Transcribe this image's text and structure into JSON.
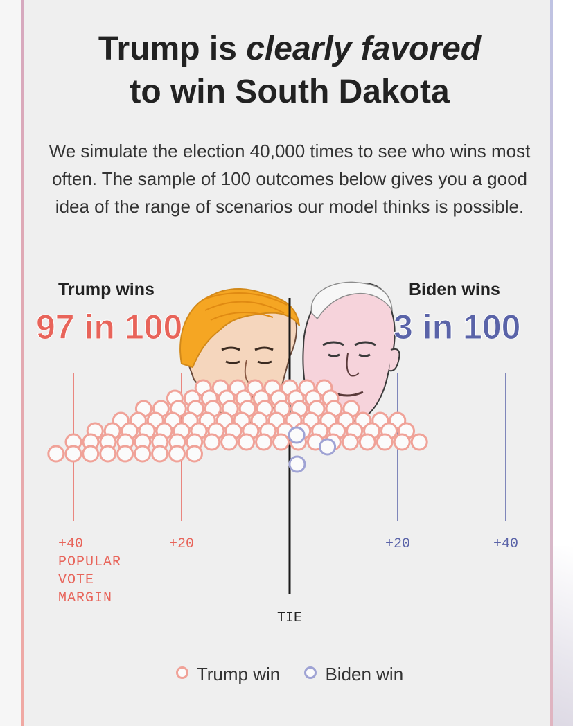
{
  "colors": {
    "trump": "#e8645a",
    "trump_dot": "#f0a298",
    "biden": "#5a63a8",
    "biden_dot": "#9fa3d4",
    "tie_line": "#1a1a1a"
  },
  "header": {
    "title_part1": "Trump is ",
    "title_emphasis": "clearly favored",
    "title_part2": "to win South Dakota",
    "subtitle": "We simulate the election 40,000 times to see who wins most often. The sample of 100 outcomes below gives you a good idea of the range of scenarios our model thinks is possible."
  },
  "trump": {
    "label": "Trump wins",
    "odds": "97 in 100",
    "portrait_icon": "trump-portrait-icon"
  },
  "biden": {
    "label": "Biden wins",
    "odds": "3 in 100",
    "portrait_icon": "biden-portrait-icon"
  },
  "chart_data": {
    "type": "scatter",
    "xlabel": "POPULAR VOTE MARGIN",
    "x_range": [
      -45,
      45
    ],
    "tie_label": "TIE",
    "ticks": [
      {
        "value": -40,
        "label": "+40",
        "side": "trump"
      },
      {
        "value": -20,
        "label": "+20",
        "side": "trump"
      },
      {
        "value": 20,
        "label": "+20",
        "side": "biden"
      },
      {
        "value": 40,
        "label": "+40",
        "side": "biden"
      }
    ],
    "series": [
      {
        "name": "Trump win",
        "count": 97
      },
      {
        "name": "Biden win",
        "count": 3
      }
    ],
    "biden_margins": [
      1.3,
      1.4,
      7.0
    ]
  },
  "legend": {
    "trump_label": "Trump win",
    "biden_label": "Biden win"
  }
}
